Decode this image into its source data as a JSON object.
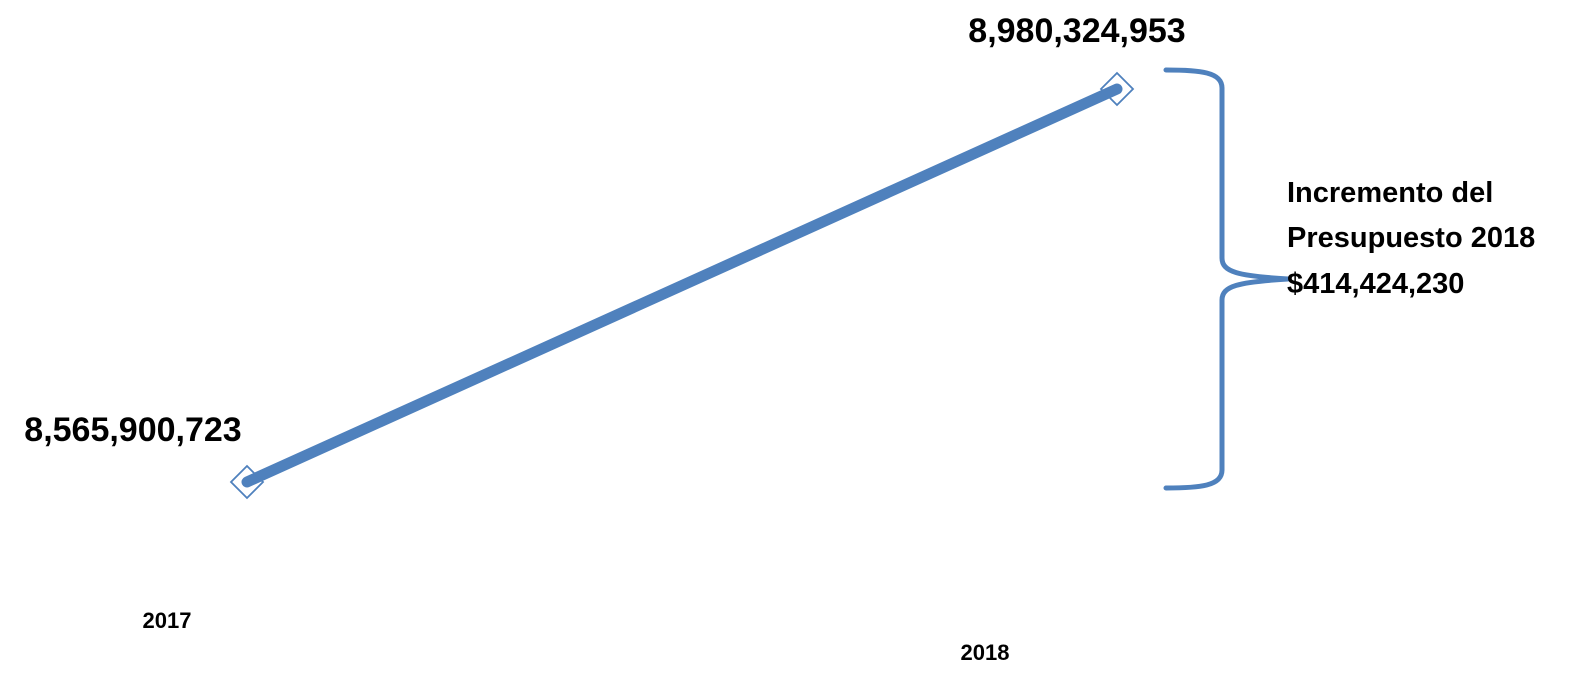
{
  "chart_data": {
    "type": "line",
    "categories": [
      "2017",
      "2018"
    ],
    "series": [
      {
        "values": [
          8565900723,
          8980324953
        ]
      }
    ],
    "data_labels": [
      "8,565,900,723",
      "8,980,324,953"
    ],
    "annotation": {
      "lines": [
        "Incremento del",
        "Presupuesto 2018",
        "$414,424,230"
      ]
    },
    "grid": false,
    "legend": "none",
    "colors": {
      "line": "#4F81BD",
      "marker_fill": "#ffffff",
      "text": "#000000"
    }
  }
}
